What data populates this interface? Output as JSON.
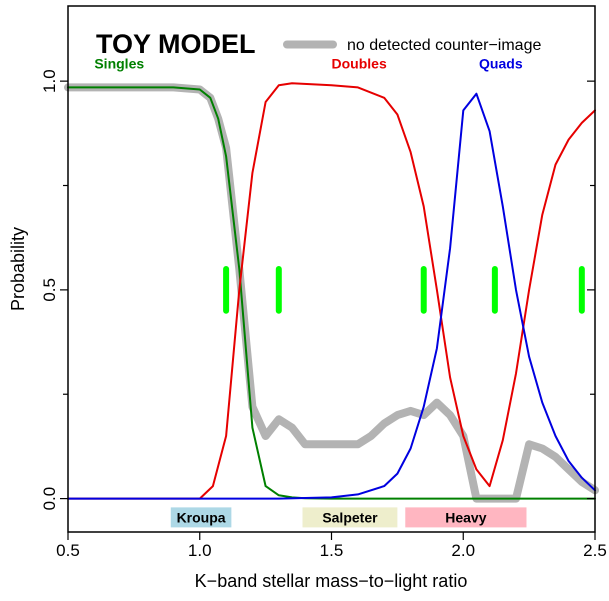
{
  "chart_data": {
    "type": "line",
    "title": "TOY MODEL",
    "xlabel": "K−band stellar mass−to−light ratio",
    "ylabel": "Probability",
    "xlim": [
      0.5,
      2.5
    ],
    "ylim": [
      -0.08,
      1.18
    ],
    "xticks": [
      0.5,
      1.0,
      1.5,
      2.0,
      2.5
    ],
    "xtick_labels": [
      "0.5",
      "1.0",
      "1.5",
      "2.0",
      "2.5"
    ],
    "yticks": [
      0.0,
      0.5,
      1.0
    ],
    "ytick_labels": [
      "0.0",
      "0.5",
      "1.0"
    ],
    "yticks_minor": [
      0.25,
      0.75
    ],
    "grid": false,
    "legend": {
      "position": "top-right",
      "entries": [
        {
          "name": "no detected counter−image",
          "color": "#b3b3b3"
        }
      ]
    },
    "series": [
      {
        "name": "Singles",
        "color": "#008000",
        "x": [
          0.5,
          0.9,
          1.0,
          1.04,
          1.07,
          1.1,
          1.15,
          1.2,
          1.25,
          1.3,
          1.35,
          1.4,
          1.5,
          2.0,
          2.5
        ],
        "y": [
          0.985,
          0.985,
          0.98,
          0.96,
          0.91,
          0.82,
          0.55,
          0.17,
          0.03,
          0.008,
          0.003,
          0.001,
          0.0,
          0.0,
          0.0
        ]
      },
      {
        "name": "Doubles",
        "color": "#e60000",
        "x": [
          0.5,
          0.9,
          1.0,
          1.05,
          1.1,
          1.15,
          1.2,
          1.25,
          1.3,
          1.35,
          1.5,
          1.6,
          1.7,
          1.75,
          1.8,
          1.85,
          1.9,
          1.95,
          2.0,
          2.05,
          2.1,
          2.15,
          2.2,
          2.25,
          2.3,
          2.35,
          2.4,
          2.45,
          2.5
        ],
        "y": [
          0.0,
          0.0,
          0.0,
          0.03,
          0.15,
          0.5,
          0.78,
          0.95,
          0.99,
          0.995,
          0.99,
          0.985,
          0.96,
          0.92,
          0.83,
          0.7,
          0.5,
          0.29,
          0.15,
          0.07,
          0.03,
          0.14,
          0.3,
          0.5,
          0.68,
          0.8,
          0.86,
          0.9,
          0.93
        ]
      },
      {
        "name": "Quads",
        "color": "#0000e0",
        "x": [
          0.5,
          1.0,
          1.3,
          1.5,
          1.6,
          1.7,
          1.75,
          1.8,
          1.85,
          1.9,
          1.95,
          2.0,
          2.05,
          2.1,
          2.15,
          2.2,
          2.25,
          2.3,
          2.35,
          2.4,
          2.45,
          2.5
        ],
        "y": [
          0.0,
          0.0,
          0.0,
          0.003,
          0.01,
          0.03,
          0.06,
          0.12,
          0.22,
          0.36,
          0.6,
          0.93,
          0.97,
          0.88,
          0.7,
          0.5,
          0.34,
          0.23,
          0.15,
          0.09,
          0.05,
          0.02
        ]
      },
      {
        "name": "no detected counter−image",
        "color": "#b3b3b3",
        "x": [
          0.5,
          0.9,
          1.0,
          1.04,
          1.07,
          1.1,
          1.15,
          1.2,
          1.25,
          1.3,
          1.35,
          1.4,
          1.5,
          1.6,
          1.65,
          1.7,
          1.75,
          1.8,
          1.85,
          1.9,
          1.95,
          2.0,
          2.05,
          2.1,
          2.15,
          2.2,
          2.25,
          2.3,
          2.35,
          2.4,
          2.45,
          2.5
        ],
        "y": [
          0.985,
          0.985,
          0.98,
          0.96,
          0.91,
          0.84,
          0.55,
          0.22,
          0.15,
          0.19,
          0.17,
          0.13,
          0.13,
          0.13,
          0.15,
          0.18,
          0.2,
          0.21,
          0.2,
          0.23,
          0.2,
          0.15,
          0.0,
          0.0,
          0.0,
          0.0,
          0.13,
          0.12,
          0.1,
          0.07,
          0.04,
          0.02
        ]
      }
    ],
    "series_labels": [
      {
        "text": "Singles",
        "color": "#008000",
        "x": 0.6,
        "y": 1.03
      },
      {
        "text": "Doubles",
        "color": "#e60000",
        "x": 1.5,
        "y": 1.03
      },
      {
        "text": "Quads",
        "color": "#0000e0",
        "x": 2.06,
        "y": 1.03
      }
    ],
    "markers": {
      "color": "#00ff00",
      "x": [
        1.1,
        1.3,
        1.85,
        2.12,
        2.45
      ],
      "y_from": 0.45,
      "y_to": 0.55
    },
    "annotations": [
      {
        "text": "Kroupa",
        "x_from": 0.89,
        "x_to": 1.12,
        "color": "#add8e6"
      },
      {
        "text": "Salpeter",
        "x_from": 1.39,
        "x_to": 1.75,
        "color": "#eeeecc"
      },
      {
        "text": "Heavy",
        "x_from": 1.78,
        "x_to": 2.24,
        "color": "#ffb6c1"
      }
    ],
    "annotation_y": -0.045
  }
}
